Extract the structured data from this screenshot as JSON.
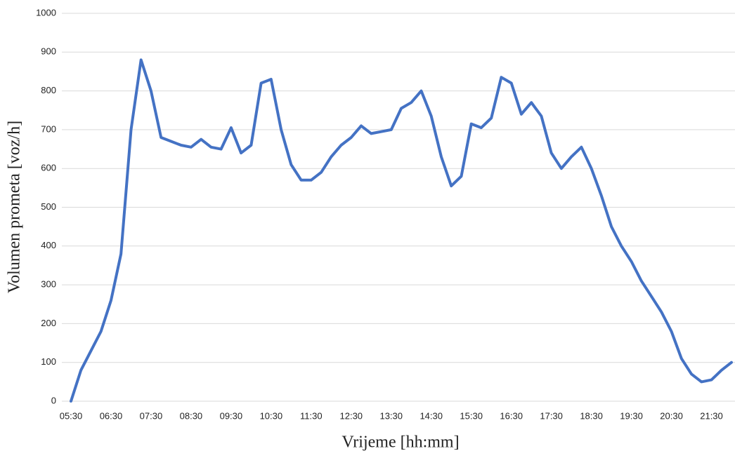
{
  "chart_data": {
    "type": "line",
    "xlabel": "Vrijeme  [hh:mm]",
    "ylabel": "Volumen prometa [voz/h]",
    "categories": [
      "05:30",
      null,
      null,
      null,
      "06:30",
      null,
      null,
      null,
      "07:30",
      null,
      null,
      null,
      "08:30",
      null,
      null,
      null,
      "09:30",
      null,
      null,
      null,
      "10:30",
      null,
      null,
      null,
      "11:30",
      null,
      null,
      null,
      "12:30",
      null,
      null,
      null,
      "13:30",
      null,
      null,
      null,
      "14:30",
      null,
      null,
      null,
      "15:30",
      null,
      null,
      null,
      "16:30",
      null,
      null,
      null,
      "17:30",
      null,
      null,
      null,
      "18:30",
      null,
      null,
      null,
      "19:30",
      null,
      null,
      null,
      "20:30",
      null,
      null,
      null,
      "21:30",
      null,
      null
    ],
    "series": [
      {
        "name": "Volumen prometa",
        "color": "#4472c4",
        "values": [
          0,
          80,
          130,
          180,
          260,
          380,
          700,
          880,
          800,
          680,
          670,
          660,
          655,
          675,
          655,
          650,
          705,
          640,
          660,
          820,
          830,
          700,
          610,
          570,
          570,
          590,
          630,
          660,
          680,
          710,
          690,
          695,
          700,
          755,
          770,
          800,
          735,
          630,
          555,
          580,
          715,
          705,
          730,
          835,
          820,
          740,
          770,
          735,
          640,
          600,
          630,
          655,
          600,
          530,
          450,
          400,
          360,
          310,
          270,
          230,
          180,
          110,
          70,
          50,
          55,
          80,
          100
        ]
      }
    ],
    "ylim": [
      0,
      1000
    ],
    "yticks": [
      0,
      100,
      200,
      300,
      400,
      500,
      600,
      700,
      800,
      900,
      1000
    ],
    "grid": true
  }
}
